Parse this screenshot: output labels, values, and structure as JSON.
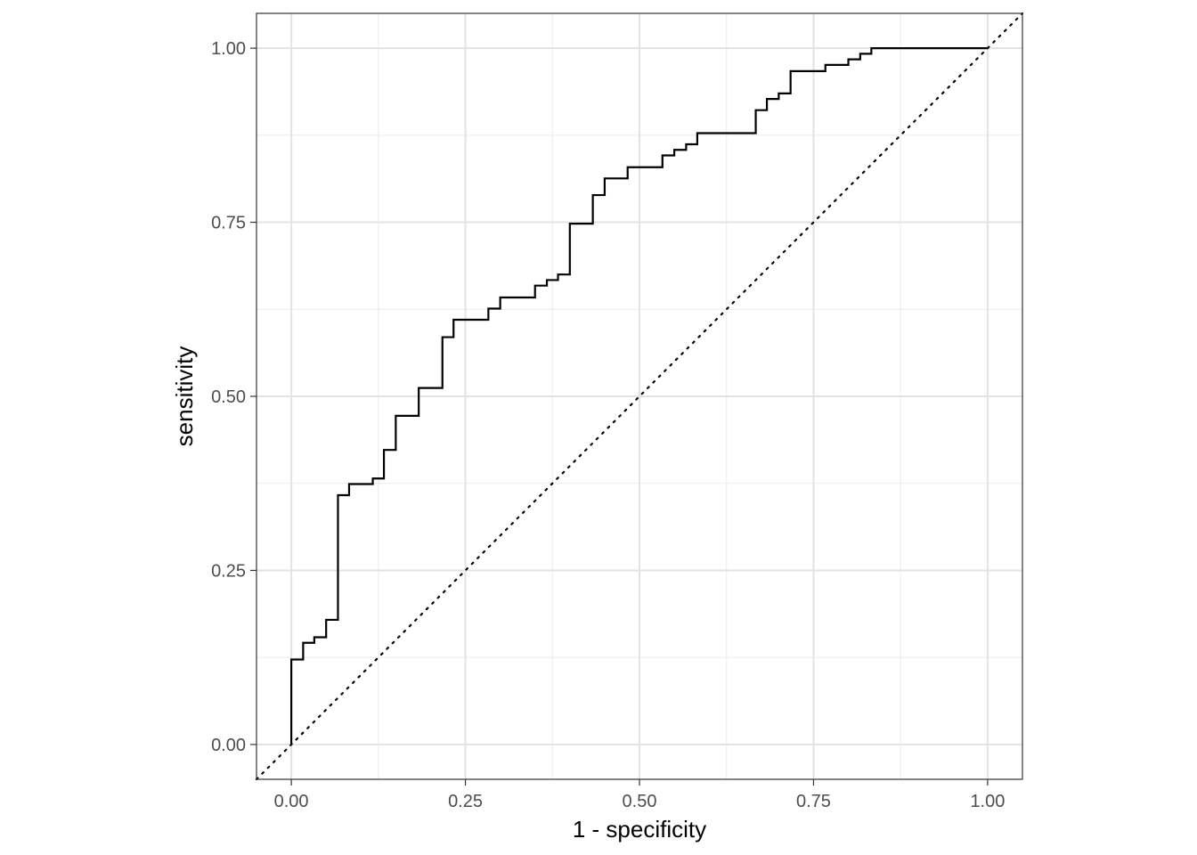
{
  "chart_data": {
    "type": "line",
    "title": "",
    "xlabel": "1 - specificity",
    "ylabel": "sensitivity",
    "xlim": [
      -0.05,
      1.05
    ],
    "ylim": [
      -0.05,
      1.05
    ],
    "x_ticks": [
      "0.00",
      "0.25",
      "0.50",
      "0.75",
      "1.00"
    ],
    "y_ticks": [
      "0.00",
      "0.25",
      "0.50",
      "0.75",
      "1.00"
    ],
    "grid": true,
    "legend": "none",
    "theme": "bw",
    "line_color": "#000000",
    "reference_line": {
      "style": "dotted",
      "from": [
        0,
        0
      ],
      "to": [
        1,
        1
      ]
    },
    "series": [
      {
        "step": true,
        "points": [
          [
            0.0,
            0.0
          ],
          [
            0.0,
            0.122
          ],
          [
            0.017,
            0.122
          ],
          [
            0.017,
            0.146
          ],
          [
            0.033,
            0.146
          ],
          [
            0.033,
            0.154
          ],
          [
            0.05,
            0.154
          ],
          [
            0.05,
            0.179
          ],
          [
            0.067,
            0.179
          ],
          [
            0.067,
            0.358
          ],
          [
            0.083,
            0.358
          ],
          [
            0.083,
            0.374
          ],
          [
            0.117,
            0.374
          ],
          [
            0.117,
            0.382
          ],
          [
            0.133,
            0.382
          ],
          [
            0.133,
            0.423
          ],
          [
            0.15,
            0.423
          ],
          [
            0.15,
            0.472
          ],
          [
            0.183,
            0.472
          ],
          [
            0.183,
            0.512
          ],
          [
            0.217,
            0.512
          ],
          [
            0.217,
            0.585
          ],
          [
            0.233,
            0.585
          ],
          [
            0.233,
            0.61
          ],
          [
            0.283,
            0.61
          ],
          [
            0.283,
            0.626
          ],
          [
            0.3,
            0.626
          ],
          [
            0.3,
            0.642
          ],
          [
            0.35,
            0.642
          ],
          [
            0.35,
            0.659
          ],
          [
            0.367,
            0.659
          ],
          [
            0.367,
            0.667
          ],
          [
            0.383,
            0.667
          ],
          [
            0.383,
            0.675
          ],
          [
            0.4,
            0.675
          ],
          [
            0.4,
            0.748
          ],
          [
            0.433,
            0.748
          ],
          [
            0.433,
            0.789
          ],
          [
            0.45,
            0.789
          ],
          [
            0.45,
            0.813
          ],
          [
            0.483,
            0.813
          ],
          [
            0.483,
            0.829
          ],
          [
            0.533,
            0.829
          ],
          [
            0.533,
            0.846
          ],
          [
            0.55,
            0.846
          ],
          [
            0.55,
            0.854
          ],
          [
            0.567,
            0.854
          ],
          [
            0.567,
            0.862
          ],
          [
            0.583,
            0.862
          ],
          [
            0.583,
            0.878
          ],
          [
            0.667,
            0.878
          ],
          [
            0.667,
            0.911
          ],
          [
            0.683,
            0.911
          ],
          [
            0.683,
            0.927
          ],
          [
            0.7,
            0.927
          ],
          [
            0.7,
            0.935
          ],
          [
            0.717,
            0.935
          ],
          [
            0.717,
            0.967
          ],
          [
            0.767,
            0.967
          ],
          [
            0.767,
            0.976
          ],
          [
            0.8,
            0.976
          ],
          [
            0.8,
            0.984
          ],
          [
            0.817,
            0.984
          ],
          [
            0.817,
            0.992
          ],
          [
            0.833,
            0.992
          ],
          [
            0.833,
            1.0
          ],
          [
            1.0,
            1.0
          ]
        ]
      }
    ]
  }
}
